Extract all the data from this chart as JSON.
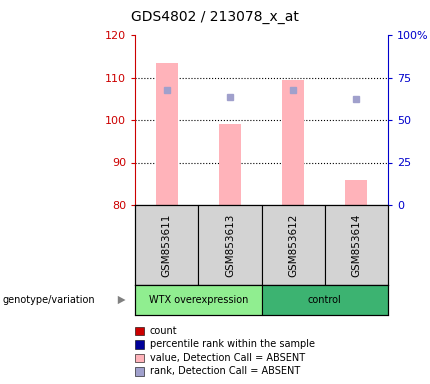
{
  "title": "GDS4802 / 213078_x_at",
  "samples": [
    "GSM853611",
    "GSM853613",
    "GSM853612",
    "GSM853614"
  ],
  "bar_values": [
    113.5,
    99.0,
    109.5,
    86.0
  ],
  "rank_dots": [
    107.0,
    105.5,
    107.0,
    105.0
  ],
  "ylim_left": [
    80,
    120
  ],
  "yticks_left": [
    80,
    90,
    100,
    110,
    120
  ],
  "yticks_right": [
    0,
    25,
    50,
    75,
    100
  ],
  "ytick_labels_right": [
    "0",
    "25",
    "50",
    "75",
    "100%"
  ],
  "bar_color": "#ffb3ba",
  "dot_color": "#a0a0cc",
  "sample_bg_color": "#d3d3d3",
  "wtx_color": "#90ee90",
  "control_color": "#3cb371",
  "left_axis_color": "#cc0000",
  "right_axis_color": "#0000cc",
  "legend_items": [
    {
      "label": "count",
      "color": "#cc0000"
    },
    {
      "label": "percentile rank within the sample",
      "color": "#000099"
    },
    {
      "label": "value, Detection Call = ABSENT",
      "color": "#ffb3ba"
    },
    {
      "label": "rank, Detection Call = ABSENT",
      "color": "#a0a0cc"
    }
  ]
}
